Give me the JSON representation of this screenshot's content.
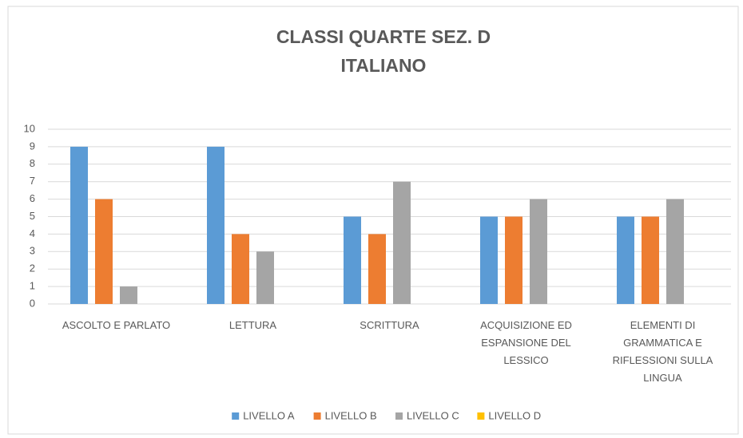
{
  "chart_data": {
    "type": "bar",
    "title": "CLASSI QUARTE SEZ. D",
    "subtitle": "ITALIANO",
    "categories": [
      "ASCOLTO E PARLATO",
      "LETTURA",
      "SCRITTURA",
      "ACQUISIZIONE ED ESPANSIONE DEL LESSICO",
      "ELEMENTI DI GRAMMATICA E RIFLESSIONI SULLA LINGUA"
    ],
    "series": [
      {
        "name": "LIVELLO A",
        "color": "#5b9bd5",
        "values": [
          9,
          9,
          5,
          5,
          5
        ]
      },
      {
        "name": "LIVELLO B",
        "color": "#ed7d31",
        "values": [
          6,
          4,
          4,
          5,
          5
        ]
      },
      {
        "name": "LIVELLO C",
        "color": "#a5a5a5",
        "values": [
          1,
          3,
          7,
          6,
          6
        ]
      },
      {
        "name": "LIVELLO D",
        "color": "#ffc000",
        "values": [
          0,
          0,
          0,
          0,
          0
        ]
      }
    ],
    "ylim": [
      0,
      10
    ],
    "yticks": [
      0,
      1,
      2,
      3,
      4,
      5,
      6,
      7,
      8,
      9,
      10
    ],
    "grid": true,
    "legend": "bottom"
  }
}
